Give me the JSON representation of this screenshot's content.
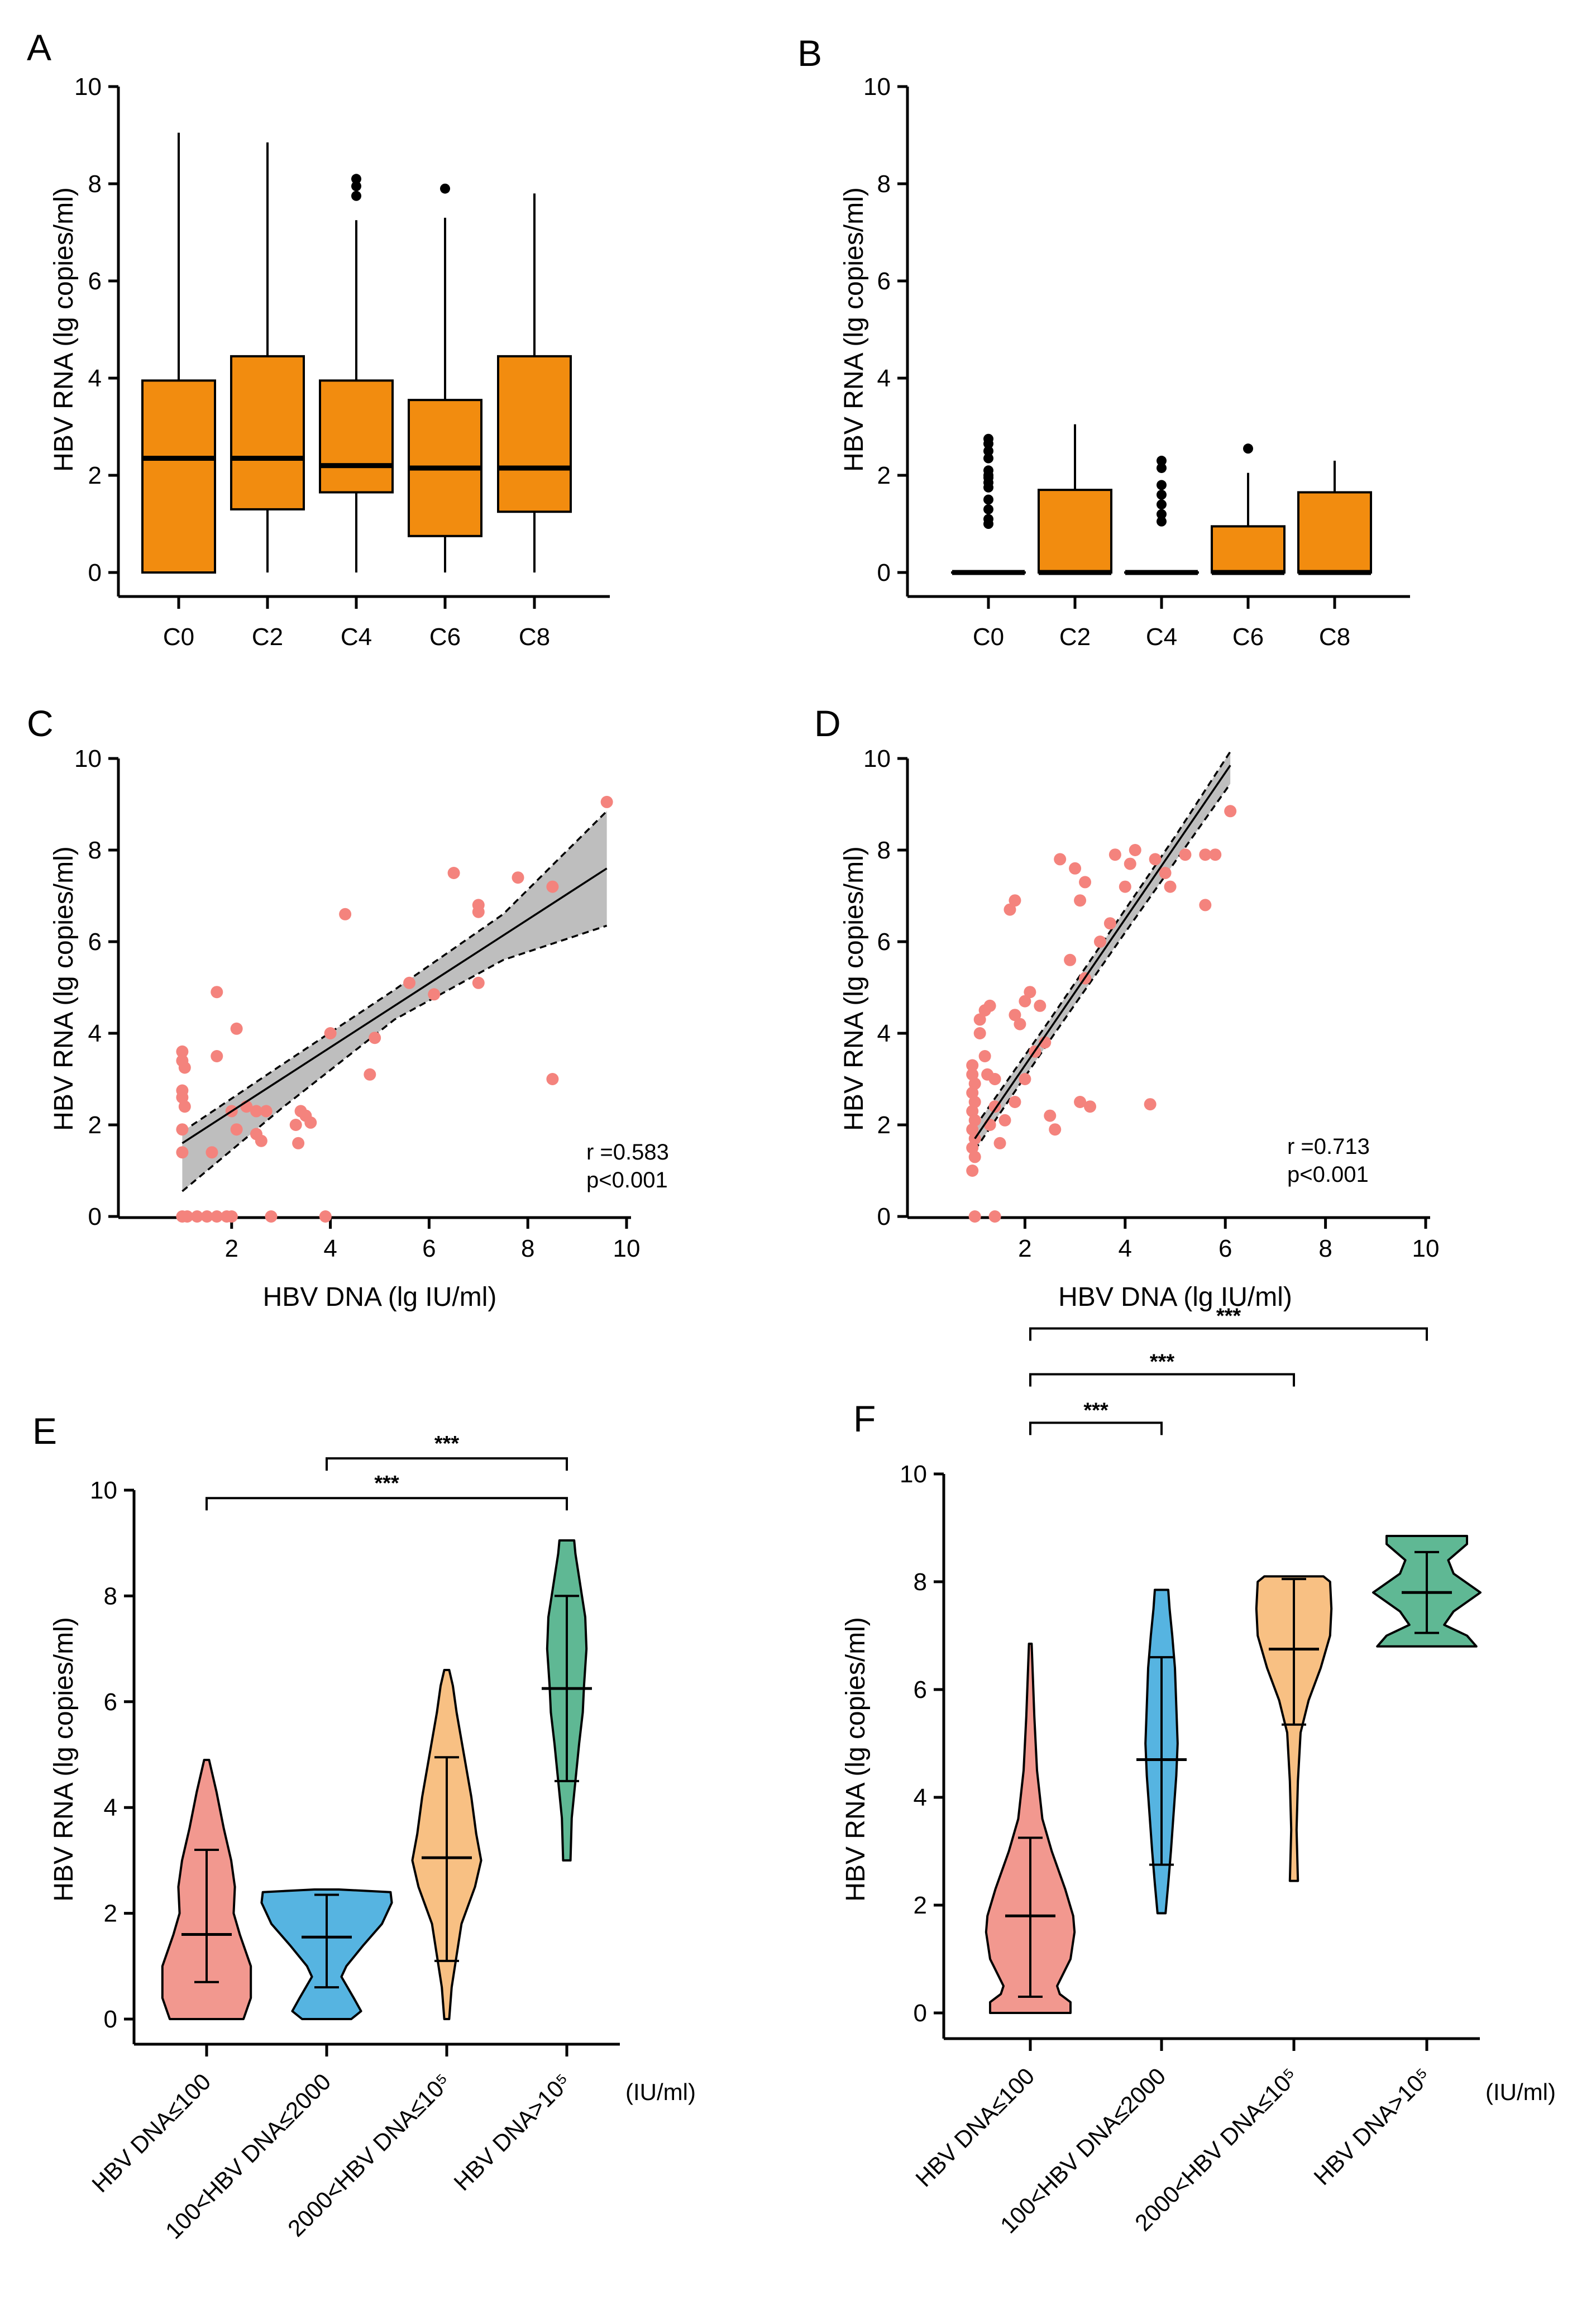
{
  "colors": {
    "box_fill": "#F28C0F",
    "point": "#F4837D",
    "band": "#BEBEBE",
    "violin_pink": "#F2988F",
    "violin_blue": "#56B4E1",
    "violin_orange": "#F8C083",
    "violin_green": "#5FB894",
    "axis": "#000000"
  },
  "chart_data": [
    {
      "panel": "A",
      "type": "box",
      "ylabel": "HBV RNA (lg copies/ml)",
      "ylim": [
        0,
        10
      ],
      "yticks": [
        0,
        2,
        4,
        6,
        8,
        10
      ],
      "categories": [
        "C0",
        "C2",
        "C4",
        "C6",
        "C8"
      ],
      "boxes": [
        {
          "min": 0,
          "q1": 0,
          "median": 2.35,
          "q3": 3.95,
          "max": 9.05,
          "outliers": []
        },
        {
          "min": 0,
          "q1": 1.3,
          "median": 2.35,
          "q3": 4.45,
          "max": 8.85,
          "outliers": []
        },
        {
          "min": 0,
          "q1": 1.65,
          "median": 2.2,
          "q3": 3.95,
          "max": 7.25,
          "outliers": [
            7.75,
            7.95,
            8.1
          ]
        },
        {
          "min": 0,
          "q1": 0.75,
          "median": 2.15,
          "q3": 3.55,
          "max": 7.3,
          "outliers": [
            7.9
          ]
        },
        {
          "min": 0,
          "q1": 1.25,
          "median": 2.15,
          "q3": 4.45,
          "max": 7.8,
          "outliers": []
        }
      ]
    },
    {
      "panel": "B",
      "type": "box",
      "ylabel": "HBV RNA (lg copies/ml)",
      "ylim": [
        0,
        10
      ],
      "yticks": [
        0,
        2,
        4,
        6,
        8,
        10
      ],
      "categories": [
        "C0",
        "C2",
        "C4",
        "C6",
        "C8"
      ],
      "boxes": [
        {
          "min": 0,
          "q1": 0,
          "median": 0,
          "q3": 0,
          "max": 0,
          "outliers": [
            1.0,
            1.1,
            1.3,
            1.5,
            1.75,
            1.85,
            1.95,
            2.0,
            2.1,
            2.35,
            2.5,
            2.65,
            2.75
          ]
        },
        {
          "min": 0,
          "q1": 0,
          "median": 0,
          "q3": 1.7,
          "max": 3.05,
          "outliers": []
        },
        {
          "min": 0,
          "q1": 0,
          "median": 0,
          "q3": 0,
          "max": 0,
          "outliers": [
            1.05,
            1.2,
            1.4,
            1.6,
            1.8,
            2.15,
            2.3
          ]
        },
        {
          "min": 0,
          "q1": 0,
          "median": 0,
          "q3": 0.95,
          "max": 2.05,
          "outliers": [
            2.55
          ]
        },
        {
          "min": 0,
          "q1": 0,
          "median": 0,
          "q3": 1.65,
          "max": 2.3,
          "outliers": []
        }
      ]
    },
    {
      "panel": "C",
      "type": "scatter",
      "xlabel": "HBV DNA  (lg IU/ml)",
      "ylabel": "HBV RNA (lg copies/ml)",
      "xlim": [
        0,
        10
      ],
      "ylim": [
        0,
        10
      ],
      "xticks": [
        2,
        4,
        6,
        8,
        10
      ],
      "yticks": [
        0,
        2,
        4,
        6,
        8,
        10
      ],
      "stats": {
        "r": "r =0.583",
        "p": "p<0.001"
      },
      "fit": {
        "x": [
          1.0,
          9.6
        ],
        "y": [
          1.6,
          7.6
        ]
      },
      "ci_upper": {
        "x": [
          1.0,
          3.0,
          5.3,
          7.5,
          9.6
        ],
        "y": [
          1.85,
          3.3,
          4.95,
          6.6,
          8.85
        ]
      },
      "ci_lower": {
        "x": [
          1.0,
          3.0,
          5.3,
          7.5,
          9.6
        ],
        "y": [
          0.55,
          2.35,
          4.3,
          5.6,
          6.35
        ]
      },
      "points": [
        [
          1.0,
          3.6
        ],
        [
          1.0,
          3.4
        ],
        [
          1.05,
          3.25
        ],
        [
          1.0,
          2.75
        ],
        [
          1.0,
          2.6
        ],
        [
          1.05,
          2.4
        ],
        [
          1.0,
          1.9
        ],
        [
          1.0,
          1.4
        ],
        [
          1.0,
          0
        ],
        [
          1.1,
          0
        ],
        [
          1.3,
          0
        ],
        [
          1.5,
          0
        ],
        [
          1.7,
          0
        ],
        [
          1.9,
          0
        ],
        [
          2.0,
          0
        ],
        [
          2.8,
          0
        ],
        [
          3.9,
          0
        ],
        [
          1.7,
          4.9
        ],
        [
          1.7,
          3.5
        ],
        [
          1.6,
          1.4
        ],
        [
          2.1,
          4.1
        ],
        [
          2.0,
          2.3
        ],
        [
          2.3,
          2.4
        ],
        [
          2.5,
          2.3
        ],
        [
          2.7,
          2.3
        ],
        [
          2.5,
          1.8
        ],
        [
          2.6,
          1.65
        ],
        [
          2.1,
          1.9
        ],
        [
          3.3,
          2.0
        ],
        [
          3.4,
          2.3
        ],
        [
          3.5,
          2.2
        ],
        [
          3.6,
          2.05
        ],
        [
          3.35,
          1.6
        ],
        [
          4.0,
          4.0
        ],
        [
          4.3,
          6.6
        ],
        [
          4.8,
          3.1
        ],
        [
          4.9,
          3.9
        ],
        [
          5.6,
          5.1
        ],
        [
          6.1,
          4.85
        ],
        [
          6.5,
          7.5
        ],
        [
          7.0,
          6.8
        ],
        [
          7.0,
          6.65
        ],
        [
          7.0,
          5.1
        ],
        [
          7.8,
          7.4
        ],
        [
          8.5,
          7.2
        ],
        [
          8.5,
          3.0
        ],
        [
          9.6,
          9.05
        ]
      ]
    },
    {
      "panel": "D",
      "type": "scatter",
      "xlabel": "HBV DNA  (lg IU/ml)",
      "ylabel": "HBV RNA (lg copies/ml)",
      "xlim": [
        0,
        10
      ],
      "ylim": [
        0,
        10
      ],
      "xticks": [
        2,
        4,
        6,
        8,
        10
      ],
      "yticks": [
        0,
        2,
        4,
        6,
        8,
        10
      ],
      "stats": {
        "r": "r =0.713",
        "p": "p<0.001"
      },
      "fit": {
        "x": [
          1.0,
          6.1
        ],
        "y": [
          1.7,
          9.85
        ]
      },
      "ci_upper": {
        "x": [
          1.0,
          2.5,
          4.0,
          5.0,
          6.1
        ],
        "y": [
          1.95,
          4.3,
          6.7,
          8.3,
          10.15
        ]
      },
      "ci_lower": {
        "x": [
          1.0,
          2.5,
          4.0,
          5.0,
          6.1
        ],
        "y": [
          1.45,
          3.85,
          6.2,
          7.75,
          9.45
        ]
      },
      "points": [
        [
          0.95,
          3.3
        ],
        [
          0.95,
          3.1
        ],
        [
          1.0,
          2.9
        ],
        [
          0.95,
          2.7
        ],
        [
          1.0,
          2.5
        ],
        [
          0.95,
          2.3
        ],
        [
          1.0,
          2.1
        ],
        [
          0.95,
          1.9
        ],
        [
          1.0,
          1.7
        ],
        [
          0.95,
          1.5
        ],
        [
          1.0,
          1.3
        ],
        [
          0.95,
          1.0
        ],
        [
          1.0,
          0
        ],
        [
          1.4,
          0
        ],
        [
          1.1,
          4.3
        ],
        [
          1.2,
          4.5
        ],
        [
          1.3,
          4.6
        ],
        [
          1.1,
          4.0
        ],
        [
          1.2,
          3.5
        ],
        [
          1.25,
          3.1
        ],
        [
          1.4,
          3.0
        ],
        [
          1.3,
          2.0
        ],
        [
          1.5,
          1.6
        ],
        [
          1.6,
          2.1
        ],
        [
          1.4,
          2.4
        ],
        [
          1.7,
          6.7
        ],
        [
          1.8,
          6.9
        ],
        [
          1.8,
          4.4
        ],
        [
          2.0,
          4.7
        ],
        [
          2.1,
          4.9
        ],
        [
          1.9,
          4.2
        ],
        [
          2.3,
          4.6
        ],
        [
          2.2,
          3.6
        ],
        [
          2.4,
          3.8
        ],
        [
          2.0,
          3.0
        ],
        [
          1.8,
          2.5
        ],
        [
          2.5,
          2.2
        ],
        [
          2.6,
          1.9
        ],
        [
          2.7,
          7.8
        ],
        [
          3.0,
          7.6
        ],
        [
          3.2,
          7.3
        ],
        [
          3.1,
          6.9
        ],
        [
          2.9,
          5.6
        ],
        [
          3.2,
          5.2
        ],
        [
          3.3,
          2.4
        ],
        [
          3.1,
          2.5
        ],
        [
          3.5,
          6.0
        ],
        [
          3.7,
          6.4
        ],
        [
          3.8,
          7.9
        ],
        [
          4.0,
          7.2
        ],
        [
          4.1,
          7.7
        ],
        [
          4.2,
          8.0
        ],
        [
          4.5,
          2.45
        ],
        [
          4.6,
          7.8
        ],
        [
          4.8,
          7.5
        ],
        [
          4.9,
          7.2
        ],
        [
          5.2,
          7.9
        ],
        [
          5.6,
          7.9
        ],
        [
          5.6,
          6.8
        ],
        [
          5.8,
          7.9
        ],
        [
          6.1,
          8.85
        ]
      ]
    },
    {
      "panel": "E",
      "type": "violin",
      "ylabel": "HBV RNA (lg copies/ml)",
      "ylim": [
        0,
        10
      ],
      "yticks": [
        0,
        2,
        4,
        6,
        8,
        10
      ],
      "categories": [
        "HBV DNA≤100",
        "100<HBV DNA≤2000",
        "2000<HBV DNA≤10⁵",
        "HBV DNA>10⁵"
      ],
      "unit_label": "(IU/ml)",
      "violins": [
        {
          "min": 0,
          "max": 4.9,
          "median": 1.6,
          "q1": 0.7,
          "q3": 3.2,
          "profile": [
            [
              0,
              0.3
            ],
            [
              0.4,
              0.36
            ],
            [
              1.0,
              0.36
            ],
            [
              1.6,
              0.27
            ],
            [
              2.0,
              0.22
            ],
            [
              2.5,
              0.23
            ],
            [
              3.0,
              0.2
            ],
            [
              3.6,
              0.14
            ],
            [
              4.3,
              0.08
            ],
            [
              4.9,
              0.02
            ]
          ]
        },
        {
          "min": 0,
          "max": 2.45,
          "median": 1.55,
          "q1": 0.6,
          "q3": 2.35,
          "profile": [
            [
              0,
              0.2
            ],
            [
              0.15,
              0.28
            ],
            [
              0.4,
              0.22
            ],
            [
              0.8,
              0.12
            ],
            [
              1.0,
              0.16
            ],
            [
              1.4,
              0.3
            ],
            [
              1.8,
              0.45
            ],
            [
              2.2,
              0.53
            ],
            [
              2.4,
              0.52
            ],
            [
              2.45,
              0.1
            ]
          ]
        },
        {
          "min": 0,
          "max": 6.6,
          "median": 3.05,
          "q1": 1.1,
          "q3": 4.95,
          "profile": [
            [
              0,
              0.02
            ],
            [
              0.6,
              0.04
            ],
            [
              1.2,
              0.08
            ],
            [
              1.8,
              0.12
            ],
            [
              2.5,
              0.23
            ],
            [
              3.0,
              0.28
            ],
            [
              3.5,
              0.24
            ],
            [
              4.2,
              0.2
            ],
            [
              5.0,
              0.14
            ],
            [
              5.8,
              0.08
            ],
            [
              6.3,
              0.05
            ],
            [
              6.6,
              0.02
            ]
          ]
        },
        {
          "min": 3.0,
          "max": 9.05,
          "median": 6.25,
          "q1": 4.5,
          "q3": 8.0,
          "profile": [
            [
              3.0,
              0.03
            ],
            [
              3.8,
              0.04
            ],
            [
              4.5,
              0.07
            ],
            [
              5.2,
              0.1
            ],
            [
              5.8,
              0.13
            ],
            [
              6.3,
              0.14
            ],
            [
              7.0,
              0.16
            ],
            [
              7.6,
              0.15
            ],
            [
              8.2,
              0.11
            ],
            [
              8.8,
              0.07
            ],
            [
              9.05,
              0.06
            ]
          ]
        }
      ],
      "comparisons": [
        {
          "from": 1,
          "to": 3,
          "label": "***",
          "y": 10.6
        },
        {
          "from": 0,
          "to": 3,
          "label": "***",
          "y": 9.85
        }
      ]
    },
    {
      "panel": "F",
      "type": "violin",
      "ylabel": "HBV RNA (lg copies/ml)",
      "ylim": [
        0,
        10
      ],
      "yticks": [
        0,
        2,
        4,
        6,
        8,
        10
      ],
      "categories": [
        "HBV DNA≤100",
        "100<HBV DNA≤2000",
        "2000<HBV DNA≤10⁵",
        "HBV DNA>10⁵"
      ],
      "unit_label": "(IU/ml)",
      "violins": [
        {
          "min": 0,
          "max": 6.85,
          "median": 1.8,
          "q1": 0.3,
          "q3": 3.25,
          "profile": [
            [
              0,
              0.3
            ],
            [
              0.2,
              0.3
            ],
            [
              0.35,
              0.22
            ],
            [
              0.5,
              0.2
            ],
            [
              1.0,
              0.3
            ],
            [
              1.5,
              0.33
            ],
            [
              1.8,
              0.32
            ],
            [
              2.3,
              0.26
            ],
            [
              3.0,
              0.16
            ],
            [
              3.6,
              0.09
            ],
            [
              4.5,
              0.05
            ],
            [
              5.5,
              0.03
            ],
            [
              6.85,
              0.01
            ]
          ]
        },
        {
          "min": 1.85,
          "max": 7.85,
          "median": 4.7,
          "q1": 2.75,
          "q3": 6.6,
          "profile": [
            [
              1.85,
              0.03
            ],
            [
              2.4,
              0.05
            ],
            [
              3.0,
              0.07
            ],
            [
              3.7,
              0.09
            ],
            [
              4.4,
              0.11
            ],
            [
              5.0,
              0.12
            ],
            [
              5.7,
              0.11
            ],
            [
              6.4,
              0.1
            ],
            [
              7.0,
              0.08
            ],
            [
              7.5,
              0.06
            ],
            [
              7.85,
              0.05
            ]
          ]
        },
        {
          "min": 2.45,
          "max": 8.1,
          "median": 6.75,
          "q1": 5.35,
          "q3": 8.05,
          "profile": [
            [
              2.45,
              0.03
            ],
            [
              3.4,
              0.02
            ],
            [
              4.3,
              0.03
            ],
            [
              5.2,
              0.05
            ],
            [
              5.8,
              0.11
            ],
            [
              6.4,
              0.2
            ],
            [
              7.0,
              0.27
            ],
            [
              7.5,
              0.28
            ],
            [
              8.0,
              0.27
            ],
            [
              8.1,
              0.22
            ]
          ]
        },
        {
          "min": 6.8,
          "max": 8.85,
          "median": 7.8,
          "q1": 7.05,
          "q3": 8.55,
          "profile": [
            [
              6.8,
              0.37
            ],
            [
              7.0,
              0.3
            ],
            [
              7.2,
              0.13
            ],
            [
              7.45,
              0.2
            ],
            [
              7.8,
              0.4
            ],
            [
              8.15,
              0.2
            ],
            [
              8.4,
              0.16
            ],
            [
              8.7,
              0.3
            ],
            [
              8.85,
              0.3
            ]
          ]
        }
      ],
      "comparisons": [
        {
          "from": 0,
          "to": 1,
          "label": "***",
          "y": 10.95
        },
        {
          "from": 0,
          "to": 2,
          "label": "***",
          "y": 11.85
        },
        {
          "from": 0,
          "to": 3,
          "label": "***",
          "y": 12.7
        }
      ]
    }
  ]
}
